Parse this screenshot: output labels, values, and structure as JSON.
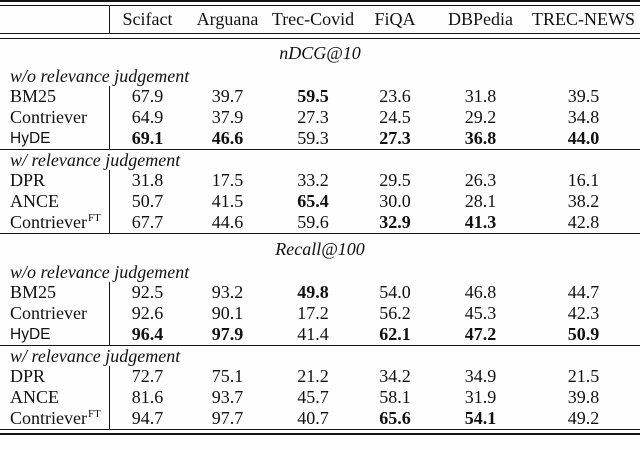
{
  "header": {
    "corner": "",
    "columns": [
      "Scifact",
      "Arguana",
      "Trec-Covid",
      "FiQA",
      "DBPedia",
      "TREC-NEWS"
    ]
  },
  "chart_data": {
    "type": "table",
    "columns": [
      "Scifact",
      "Arguana",
      "Trec-Covid",
      "FiQA",
      "DBPedia",
      "TREC-NEWS"
    ],
    "note_bold_means": "best value emphasis as rendered in pixels"
  },
  "sections": [
    {
      "title": "nDCG@10",
      "groups": [
        {
          "title": "w/o relevance judgement",
          "rows": [
            {
              "label": "BM25",
              "sup": "",
              "sans": false,
              "values": [
                "67.9",
                "39.7",
                "59.5",
                "23.6",
                "31.8",
                "39.5"
              ],
              "bold": [
                2
              ]
            },
            {
              "label": "Contriever",
              "sup": "",
              "sans": false,
              "values": [
                "64.9",
                "37.9",
                "27.3",
                "24.5",
                "29.2",
                "34.8"
              ],
              "bold": []
            },
            {
              "label": "HyDE",
              "sup": "",
              "sans": true,
              "values": [
                "69.1",
                "46.6",
                "59.3",
                "27.3",
                "36.8",
                "44.0"
              ],
              "bold": [
                0,
                1,
                3,
                4,
                5
              ]
            }
          ]
        },
        {
          "title": "w/ relevance judgement",
          "rows": [
            {
              "label": "DPR",
              "sup": "",
              "sans": false,
              "values": [
                "31.8",
                "17.5",
                "33.2",
                "29.5",
                "26.3",
                "16.1"
              ],
              "bold": []
            },
            {
              "label": "ANCE",
              "sup": "",
              "sans": false,
              "values": [
                "50.7",
                "41.5",
                "65.4",
                "30.0",
                "28.1",
                "38.2"
              ],
              "bold": [
                2
              ]
            },
            {
              "label": "Contriever",
              "sup": "FT",
              "sans": false,
              "values": [
                "67.7",
                "44.6",
                "59.6",
                "32.9",
                "41.3",
                "42.8"
              ],
              "bold": [
                3,
                4
              ]
            }
          ]
        }
      ]
    },
    {
      "title": "Recall@100",
      "groups": [
        {
          "title": "w/o relevance judgement",
          "rows": [
            {
              "label": "BM25",
              "sup": "",
              "sans": false,
              "values": [
                "92.5",
                "93.2",
                "49.8",
                "54.0",
                "46.8",
                "44.7"
              ],
              "bold": [
                2
              ]
            },
            {
              "label": "Contriever",
              "sup": "",
              "sans": false,
              "values": [
                "92.6",
                "90.1",
                "17.2",
                "56.2",
                "45.3",
                "42.3"
              ],
              "bold": []
            },
            {
              "label": "HyDE",
              "sup": "",
              "sans": true,
              "values": [
                "96.4",
                "97.9",
                "41.4",
                "62.1",
                "47.2",
                "50.9"
              ],
              "bold": [
                0,
                1,
                3,
                4,
                5
              ]
            }
          ]
        },
        {
          "title": "w/ relevance judgement",
          "rows": [
            {
              "label": "DPR",
              "sup": "",
              "sans": false,
              "values": [
                "72.7",
                "75.1",
                "21.2",
                "34.2",
                "34.9",
                "21.5"
              ],
              "bold": []
            },
            {
              "label": "ANCE",
              "sup": "",
              "sans": false,
              "values": [
                "81.6",
                "93.7",
                "45.7",
                "58.1",
                "31.9",
                "39.8"
              ],
              "bold": []
            },
            {
              "label": "Contriever",
              "sup": "FT",
              "sans": false,
              "values": [
                "94.7",
                "97.7",
                "40.7",
                "65.6",
                "54.1",
                "49.2"
              ],
              "bold": [
                3,
                4
              ]
            }
          ]
        }
      ]
    }
  ]
}
